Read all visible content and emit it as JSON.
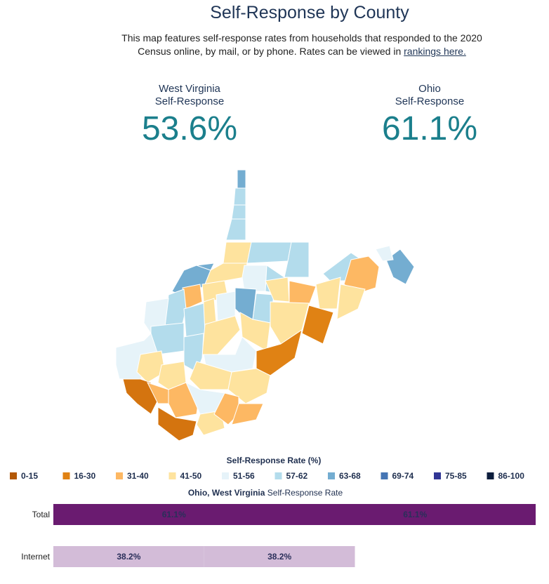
{
  "header": {
    "title": "Self-Response by County",
    "description_lines": [
      "This map features self-response rates from households that responded to the 2020",
      "Census online, by mail, or by phone. Rates can be viewed in"
    ],
    "link": "rankings here."
  },
  "stats": [
    {
      "label_lines": [
        "West Virginia",
        "Self-Response"
      ],
      "value": "53.6%"
    },
    {
      "label_lines": [
        "Ohio",
        "Self-Response"
      ],
      "value": "61.1%"
    }
  ],
  "map_legend": {
    "title": "Self-Response Rate (%)",
    "items": [
      {
        "label": "0-15",
        "color": "#b35806"
      },
      {
        "label": "16-30",
        "color": "#e08214"
      },
      {
        "label": "31-40",
        "color": "#fdb863"
      },
      {
        "label": "41-50",
        "color": "#fee39e"
      },
      {
        "label": "51-56",
        "color": "#e6f3f9"
      },
      {
        "label": "57-62",
        "color": "#b3dcec"
      },
      {
        "label": "63-68",
        "color": "#74add1"
      },
      {
        "label": "69-74",
        "color": "#4575b4"
      },
      {
        "label": "75-85",
        "color": "#313695"
      },
      {
        "label": "86-100",
        "color": "#0d1e3d"
      }
    ]
  },
  "chart_data": {
    "type": "bar",
    "orientation": "horizontal",
    "stacked": true,
    "title_bold": "Ohio, West Virginia",
    "title": "Self-Response Rate",
    "categories": [
      "Total",
      "Internet"
    ],
    "colors": [
      "#6a1b70",
      "#d3bcd8"
    ],
    "series": [
      {
        "values": [
          61.1,
          38.2
        ],
        "value_labels": [
          "61.1%",
          "38.2%"
        ]
      },
      {
        "values": [
          61.1,
          38.2
        ],
        "value_labels": [
          "61.1%",
          "38.2%"
        ]
      }
    ],
    "xlim": [
      0,
      122.2
    ]
  }
}
